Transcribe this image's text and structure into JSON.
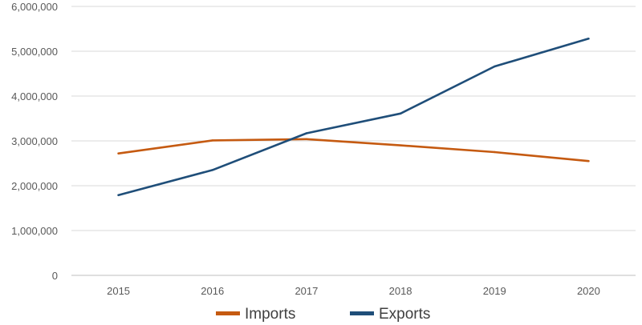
{
  "chart_data": {
    "type": "line",
    "title": "",
    "xlabel": "",
    "ylabel": "",
    "categories": [
      "2015",
      "2016",
      "2017",
      "2018",
      "2019",
      "2020"
    ],
    "ylim": [
      0,
      6000000
    ],
    "yticks": [
      {
        "value": 0,
        "label": "0"
      },
      {
        "value": 1000000,
        "label": "1,000,000"
      },
      {
        "value": 2000000,
        "label": "2,000,000"
      },
      {
        "value": 3000000,
        "label": "3,000,000"
      },
      {
        "value": 4000000,
        "label": "4,000,000"
      },
      {
        "value": 5000000,
        "label": "5,000,000"
      },
      {
        "value": 6000000,
        "label": "6,000,000"
      }
    ],
    "grid": true,
    "legend_position": "bottom",
    "series": [
      {
        "name": "Imports",
        "color": "#C55A11",
        "values": [
          2720000,
          3010000,
          3040000,
          2900000,
          2750000,
          2550000
        ]
      },
      {
        "name": "Exports",
        "color": "#1F4E79",
        "values": [
          1790000,
          2350000,
          3170000,
          3610000,
          4660000,
          5280000
        ]
      }
    ]
  }
}
